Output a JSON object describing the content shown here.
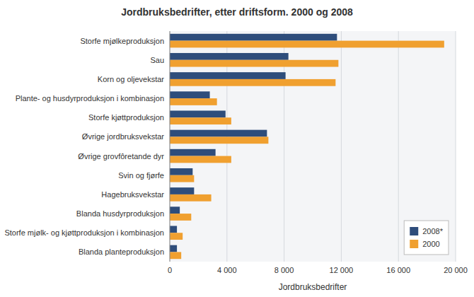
{
  "chart_data": {
    "type": "bar",
    "orientation": "horizontal",
    "title": "Jordbruksbedrifter, etter driftsform. 2000 og 2008",
    "xlabel": "Jordbruksbedrifter",
    "categories": [
      "Storfe mjølkeproduksjon",
      "Sau",
      "Korn og oljevekstar",
      "Plante- og husdyrproduksjon i kombinasjon",
      "Storfe kjøttproduksjon",
      "Øvrige jordbruksvekstar",
      "Øvrige grovfôretande dyr",
      "Svin og fjørfe",
      "Hagebruksvekstar",
      "Blanda husdyrproduksjon",
      "Storfe mjølk- og kjøttproduksjon i kombinasjon",
      "Blanda planteproduksjon"
    ],
    "series": [
      {
        "name": "2008*",
        "color": "#2e4d7b",
        "values": [
          11700,
          8300,
          8100,
          2800,
          3900,
          6800,
          3200,
          1600,
          1700,
          700,
          500,
          500
        ]
      },
      {
        "name": "2000",
        "color": "#f0a030",
        "values": [
          19200,
          11800,
          11600,
          3300,
          4300,
          6900,
          4300,
          1700,
          2900,
          1500,
          900,
          800
        ]
      }
    ],
    "xlim": [
      0,
      20000
    ],
    "xticks": [
      0,
      {
        "value": 4000,
        "label": "4 000"
      },
      {
        "value": 8000,
        "label": "8 000"
      },
      {
        "value": 12000,
        "label": "12 000"
      },
      {
        "value": 16000,
        "label": "16 000"
      },
      {
        "value": 20000,
        "label": "20 000"
      }
    ],
    "grid": true,
    "legend": "lower right"
  }
}
